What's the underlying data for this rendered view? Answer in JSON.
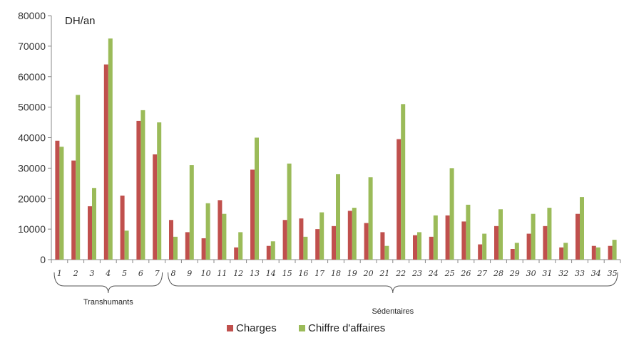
{
  "chart_data": {
    "type": "bar",
    "title": "",
    "ylabel": "DH/an",
    "xlabel": "",
    "ylim": [
      0,
      80000
    ],
    "yticks": [
      0,
      10000,
      20000,
      30000,
      40000,
      50000,
      60000,
      70000,
      80000
    ],
    "grid": false,
    "legend_position": "bottom",
    "categories": [
      "1",
      "2",
      "3",
      "4",
      "5",
      "6",
      "7",
      "8",
      "9",
      "10",
      "11",
      "12",
      "13",
      "14",
      "15",
      "16",
      "17",
      "18",
      "19",
      "20",
      "21",
      "22",
      "23",
      "24",
      "25",
      "26",
      "27",
      "28",
      "29",
      "30",
      "31",
      "32",
      "33",
      "34",
      "35"
    ],
    "series": [
      {
        "name": "Charges",
        "color": "#c0504d",
        "values": [
          39000,
          32500,
          17500,
          64000,
          21000,
          45500,
          34500,
          13000,
          9000,
          7000,
          19500,
          4000,
          29500,
          4500,
          13000,
          13500,
          10000,
          11000,
          16000,
          12000,
          9000,
          39500,
          8000,
          7500,
          14500,
          12500,
          5000,
          11000,
          3500,
          8500,
          11000,
          4000,
          15000,
          4500,
          4500
        ]
      },
      {
        "name": "Chiffre d'affaires",
        "color": "#9bbb59",
        "values": [
          37000,
          54000,
          23500,
          72500,
          9500,
          49000,
          45000,
          7500,
          31000,
          18500,
          15000,
          9000,
          40000,
          6000,
          31500,
          7500,
          15500,
          28000,
          17000,
          27000,
          4500,
          51000,
          9000,
          14500,
          30000,
          18000,
          8500,
          16500,
          5500,
          15000,
          17000,
          5500,
          20500,
          4000,
          6500
        ]
      }
    ],
    "groups": [
      {
        "label": "Transhumants",
        "from": 1,
        "to": 7
      },
      {
        "label": "Sédentaires",
        "from": 8,
        "to": 35
      }
    ]
  }
}
